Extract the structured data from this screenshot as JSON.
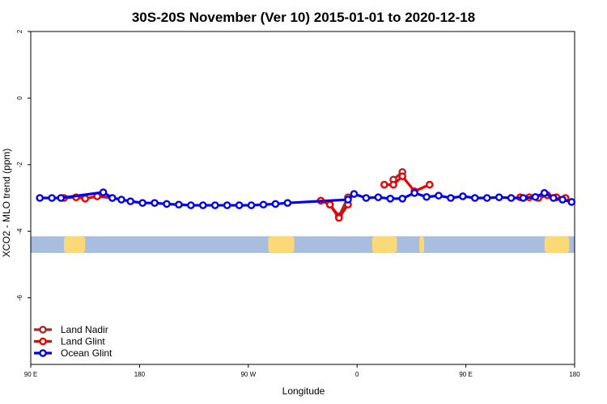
{
  "chart_data": {
    "type": "line",
    "title": "30S-20S November (Ver 10)   2015-01-01 to 2020-12-18",
    "xlabel": "Longitude",
    "ylabel": "XCO2 - MLO trend (ppm)",
    "xlim": [
      90,
      540
    ],
    "ylim": [
      -8,
      2
    ],
    "x_ticks": [
      {
        "value": 90,
        "label": "90 E"
      },
      {
        "value": 180,
        "label": "180"
      },
      {
        "value": 270,
        "label": "90 W"
      },
      {
        "value": 360,
        "label": "0"
      },
      {
        "value": 450,
        "label": "90 E"
      },
      {
        "value": 540,
        "label": "180"
      }
    ],
    "y_ticks": [
      {
        "value": 2,
        "label": "2"
      },
      {
        "value": 0,
        "label": "0"
      },
      {
        "value": -2,
        "label": "-2"
      },
      {
        "value": -4,
        "label": "-4"
      },
      {
        "value": -6,
        "label": "-6"
      }
    ],
    "land_band": {
      "y_range": [
        -4.65,
        -4.15
      ],
      "ocean_color": "#a9bedf",
      "land_color": "#fbd977",
      "land_x_ranges": [
        [
          117.5,
          135
        ],
        [
          286.5,
          308
        ],
        [
          372.5,
          393
        ],
        [
          411.5,
          415.5
        ],
        [
          515,
          535.5
        ]
      ]
    },
    "legend_position": "bottom-left",
    "series": [
      {
        "name": "Land Nadir",
        "color": "#a52a2a",
        "segments": [
          [
            [
              337.5,
              -3.2
            ],
            [
              345,
              -3.55
            ],
            [
              352.5,
              -2.98
            ]
          ],
          [
            [
              390,
              -2.45
            ],
            [
              397.5,
              -2.22
            ]
          ]
        ]
      },
      {
        "name": "Land Glint",
        "color": "#ee0000",
        "segments": [
          [
            [
              117.5,
              -3.0
            ],
            [
              127.5,
              -2.98
            ],
            [
              135,
              -3.02
            ],
            [
              145,
              -2.95
            ],
            [
              157.5,
              -3.0
            ]
          ],
          [
            [
              330,
              -3.08
            ],
            [
              337.5,
              -3.2
            ],
            [
              345,
              -3.6
            ],
            [
              352.5,
              -3.2
            ]
          ],
          [
            [
              382.5,
              -2.6
            ],
            [
              390,
              -2.6
            ],
            [
              397.5,
              -2.35
            ],
            [
              407.5,
              -2.8
            ],
            [
              420,
              -2.6
            ]
          ],
          [
            [
              495,
              -2.98
            ],
            [
              502.5,
              -2.98
            ],
            [
              510,
              -3.0
            ],
            [
              517.5,
              -2.92
            ],
            [
              525,
              -2.98
            ],
            [
              532.5,
              -3.0
            ]
          ]
        ]
      },
      {
        "name": "Ocean Glint",
        "color": "#0000ee",
        "segments": [
          [
            [
              97.5,
              -3.0
            ],
            [
              107.5,
              -3.0
            ],
            [
              115,
              -3.0
            ],
            [
              150,
              -2.83
            ],
            [
              157.5,
              -3.0
            ],
            [
              165,
              -3.05
            ],
            [
              172.5,
              -3.1
            ],
            [
              182.5,
              -3.15
            ],
            [
              192.5,
              -3.15
            ],
            [
              202.5,
              -3.18
            ],
            [
              212.5,
              -3.2
            ],
            [
              222.5,
              -3.22
            ],
            [
              232.5,
              -3.22
            ],
            [
              242.5,
              -3.22
            ],
            [
              252.5,
              -3.22
            ],
            [
              262.5,
              -3.22
            ],
            [
              272.5,
              -3.22
            ],
            [
              282.5,
              -3.2
            ],
            [
              292.5,
              -3.18
            ],
            [
              302.5,
              -3.15
            ],
            [
              352.5,
              -3.05
            ],
            [
              357.5,
              -2.88
            ],
            [
              367.5,
              -3.0
            ],
            [
              377.5,
              -2.98
            ],
            [
              387.5,
              -3.02
            ],
            [
              397.5,
              -3.02
            ],
            [
              407.5,
              -2.85
            ],
            [
              417.5,
              -2.97
            ],
            [
              427.5,
              -2.93
            ],
            [
              437.5,
              -3.0
            ],
            [
              447.5,
              -2.95
            ],
            [
              457.5,
              -3.0
            ],
            [
              467.5,
              -3.0
            ],
            [
              477.5,
              -2.98
            ],
            [
              487.5,
              -3.0
            ],
            [
              497.5,
              -3.0
            ],
            [
              507.5,
              -2.97
            ],
            [
              515,
              -2.85
            ],
            [
              522.5,
              -3.0
            ],
            [
              530,
              -3.05
            ],
            [
              537.5,
              -3.12
            ]
          ]
        ]
      }
    ]
  }
}
